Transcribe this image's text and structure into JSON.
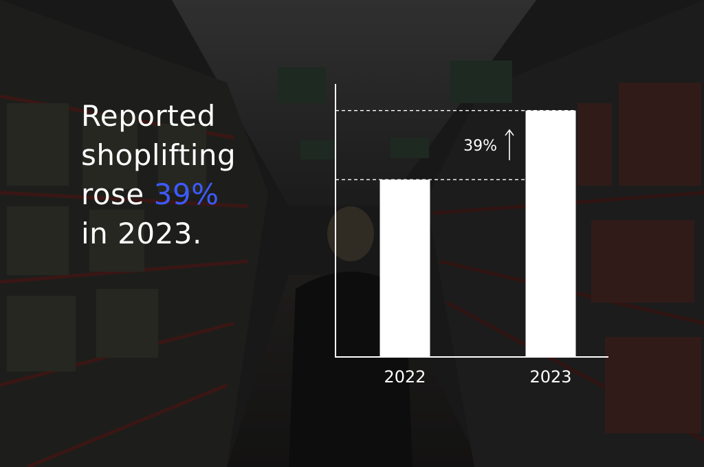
{
  "headline": {
    "line1": "Reported",
    "line2": "shoplifting",
    "line3_prefix": "rose ",
    "line3_highlight": "39%",
    "line4": "in 2023."
  },
  "colors": {
    "accent": "#3d5afe",
    "bars": "#ffffff",
    "axis": "#ffffff"
  },
  "chart_data": {
    "type": "bar",
    "categories": [
      "2022",
      "2023"
    ],
    "values": [
      100,
      139
    ],
    "title": "",
    "xlabel": "",
    "ylabel": "",
    "ylim": [
      0,
      154
    ],
    "grid": false,
    "annotation": {
      "text": "39%",
      "icon": "arrow-up-icon",
      "from": 100,
      "to": 139
    }
  }
}
